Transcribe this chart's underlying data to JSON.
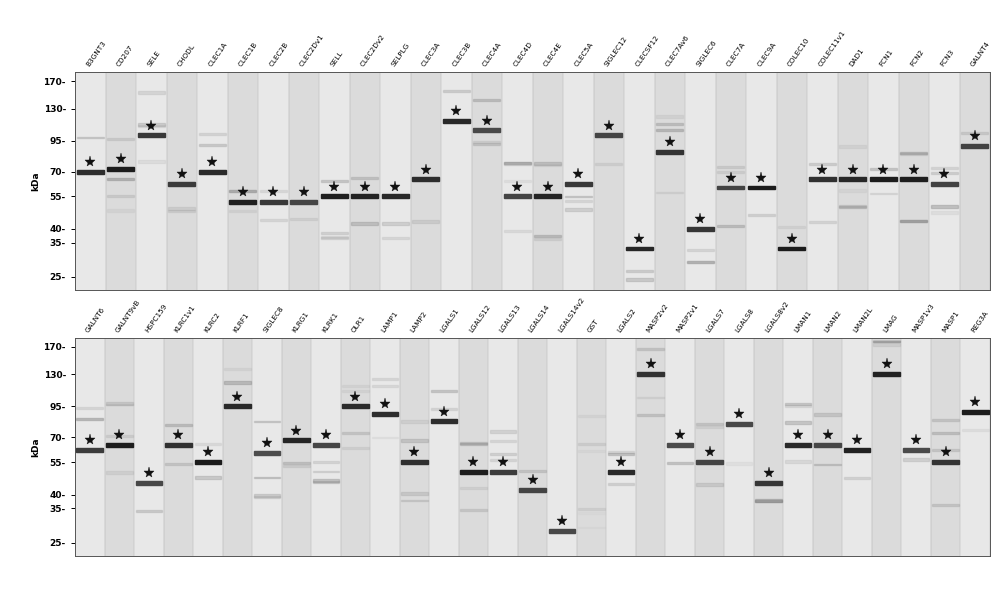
{
  "panel1_labels": [
    "B3GNT3",
    "CD207",
    "SELE",
    "CHODL",
    "CLEC1A",
    "CLEC1B",
    "CLEC2B",
    "CLEC2Dv1",
    "SELL",
    "CLEC2Dv2",
    "SELPLG",
    "CLEC3A",
    "CLEC3B",
    "CLEC4A",
    "CLEC4D",
    "CLEC4E",
    "CLEC5A",
    "SIGLEC12",
    "CLECSF12",
    "CLEC7Av6",
    "SIGLEC6",
    "CLEC7A",
    "CLEC9A",
    "COLEC10",
    "COLEC11v1",
    "DAD1",
    "FCN1",
    "FCN2",
    "FCN3",
    "GALNT4"
  ],
  "panel2_labels": [
    "GALNT6",
    "GALNT9vB",
    "HSPC159",
    "KLRC1v1",
    "KLRC2",
    "KLRF1",
    "SIGLEC8",
    "KLRG1",
    "KLRK1",
    "OLR1",
    "LAMP1",
    "LAMP2",
    "LGALS1",
    "LGALS12",
    "LGALS13",
    "LGALS14",
    "LGALS14v2",
    "GST",
    "LGALS2",
    "MASP2v2",
    "MASP2v1",
    "LGALS7",
    "LGALS8",
    "LGALS8v2",
    "LMAN1",
    "LMAN2",
    "LMAN2L",
    "LMAG",
    "MASP1v3",
    "MASP1",
    "REG3A"
  ],
  "mw_markers": [
    170,
    130,
    95,
    70,
    55,
    40,
    35,
    25
  ],
  "star_mws_1": [
    70,
    72,
    100,
    62,
    70,
    52,
    52,
    52,
    55,
    55,
    55,
    65,
    115,
    105,
    55,
    55,
    62,
    100,
    33,
    85,
    40,
    60,
    60,
    33,
    65,
    65,
    65,
    65,
    62,
    90
  ],
  "star_mws_2": [
    62,
    65,
    45,
    65,
    55,
    95,
    60,
    68,
    65,
    95,
    88,
    55,
    82,
    50,
    50,
    42,
    28,
    0,
    50,
    130,
    65,
    55,
    80,
    45,
    65,
    65,
    62,
    130,
    62,
    55,
    90
  ]
}
